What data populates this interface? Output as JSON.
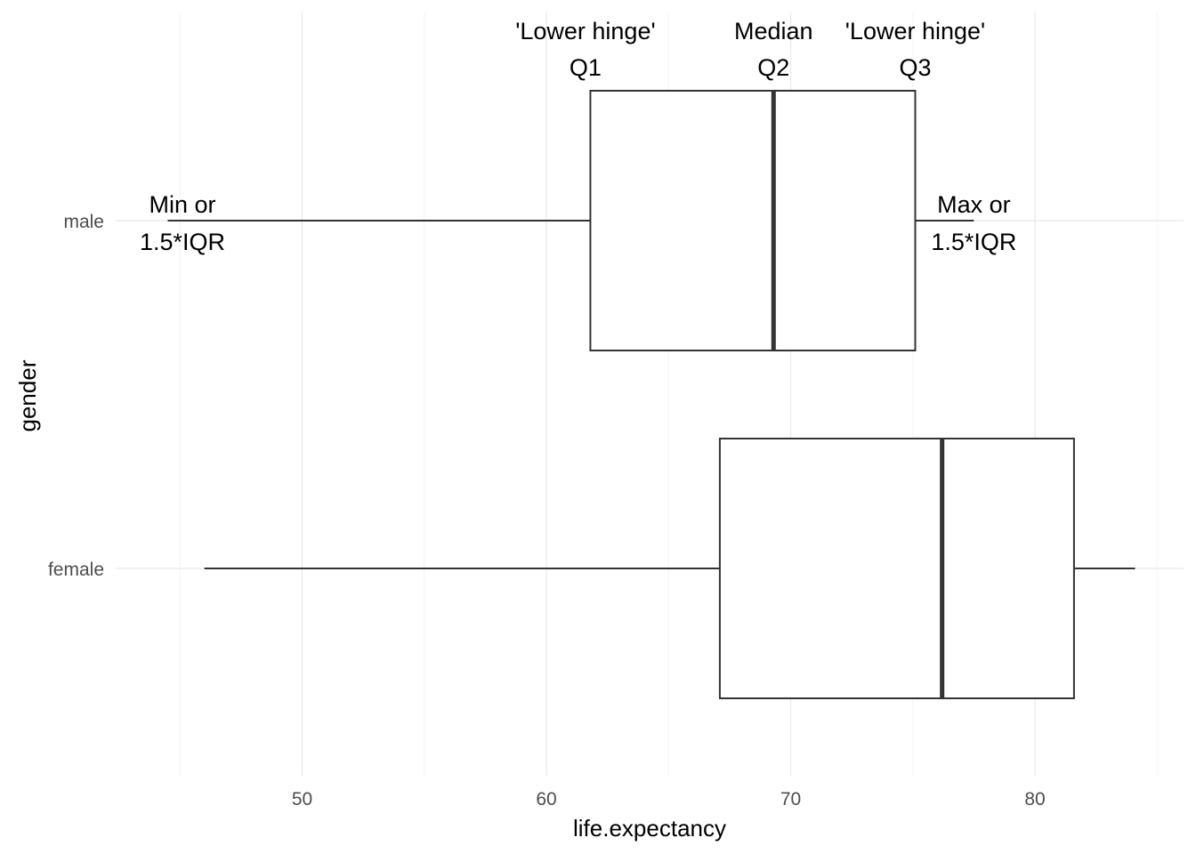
{
  "chart_data": {
    "type": "boxplot",
    "orientation": "horizontal",
    "xlabel": "life.expectancy",
    "ylabel": "gender",
    "xlim": [
      42.5,
      86
    ],
    "x_ticks": [
      50,
      60,
      70,
      80
    ],
    "x_tick_labels": [
      "50",
      "60",
      "70",
      "80"
    ],
    "x_minor_ticks": [
      45,
      55,
      65,
      75,
      85
    ],
    "categories": [
      "male",
      "female"
    ],
    "grid": true,
    "series": [
      {
        "category": "male",
        "whisker_low": 44.5,
        "q1": 61.8,
        "median": 69.3,
        "q3": 75.1,
        "whisker_high": 77.5
      },
      {
        "category": "female",
        "whisker_low": 46.0,
        "q1": 67.1,
        "median": 76.2,
        "q3": 81.6,
        "whisker_high": 84.1
      }
    ],
    "annotations": [
      {
        "line1": "'Lower hinge'",
        "line2": "Q1",
        "x": 61.6,
        "category": "male",
        "position": "above"
      },
      {
        "line1": "Median",
        "line2": "Q2",
        "x": 69.3,
        "category": "male",
        "position": "above"
      },
      {
        "line1": "'Lower hinge'",
        "line2": "Q3",
        "x": 75.1,
        "category": "male",
        "position": "above"
      },
      {
        "line1": "Min or",
        "line2": "1.5*IQR",
        "x": 45.1,
        "category": "male",
        "position": "inline"
      },
      {
        "line1": "Max or",
        "line2": "1.5*IQR",
        "x": 77.5,
        "category": "male",
        "position": "inline"
      }
    ]
  }
}
